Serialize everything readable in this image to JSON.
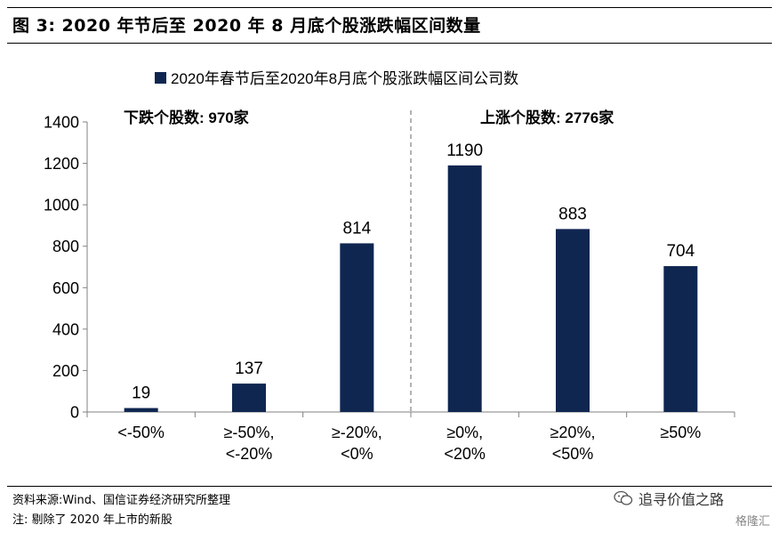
{
  "figure": {
    "title": "图 3: 2020 年节后至 2020 年 8 月底个股涨跌幅区间数量",
    "source": "资料来源:Wind、国信证券经济研究所整理",
    "note": "注: 剔除了 2020 年上市的新股",
    "watermark": "追寻价值之路",
    "corner_mark": "格隆汇"
  },
  "chart_data": {
    "type": "bar",
    "categories": [
      "<-50%",
      "≥-50%,\n<-20%",
      "≥-20%,\n<0%",
      "≥0%,\n<20%",
      "≥20%,\n<50%",
      "≥50%"
    ],
    "series": [
      {
        "name": "2020年春节后至2020年8月底个股涨跌幅区间公司数",
        "values": [
          19,
          137,
          814,
          1190,
          883,
          704
        ],
        "color": "#0f2650"
      }
    ],
    "ylim": [
      0,
      1400
    ],
    "yticks": [
      0,
      200,
      400,
      600,
      800,
      1000,
      1200,
      1400
    ],
    "grid": false,
    "legend": "top-center",
    "annotations": [
      {
        "text": "下跌个股数: 970家",
        "group": "down"
      },
      {
        "text": "上涨个股数: 2776家",
        "group": "up"
      }
    ],
    "divider": "dashed line between ≥-20%,<0% and ≥0%,<20%"
  }
}
